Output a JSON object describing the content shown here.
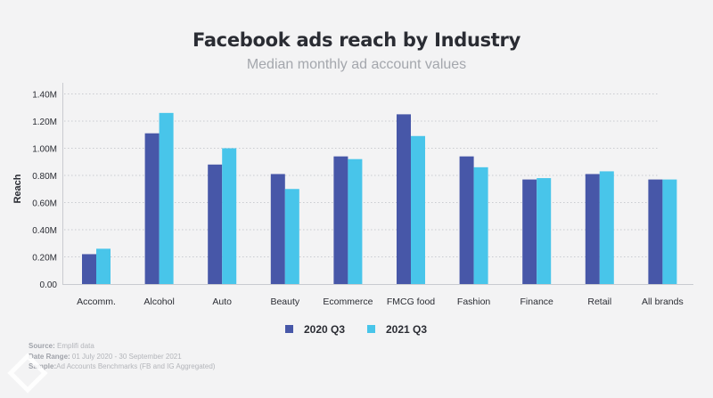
{
  "chart_data": {
    "type": "bar",
    "title": "Facebook ads reach by Industry",
    "subtitle": "Median monthly ad account values",
    "ylabel": "Reach",
    "xlabel": "",
    "ylim": [
      0,
      1.4
    ],
    "yticks": [
      "0.00",
      "0.20M",
      "0.40M",
      "0.60M",
      "0.80M",
      "1.00M",
      "1.20M",
      "1.40M"
    ],
    "grid": true,
    "legend_position": "bottom",
    "categories": [
      "Accomm.",
      "Alcohol",
      "Auto",
      "Beauty",
      "Ecommerce",
      "FMCG food",
      "Fashion",
      "Finance",
      "Retail",
      "All brands"
    ],
    "series": [
      {
        "name": "2020 Q3",
        "color": "#4757a8",
        "values": [
          0.22,
          1.11,
          0.88,
          0.81,
          0.94,
          1.25,
          0.94,
          0.77,
          0.81,
          0.77
        ]
      },
      {
        "name": "2021 Q3",
        "color": "#48c5ea",
        "values": [
          0.26,
          1.26,
          1.0,
          0.7,
          0.92,
          1.09,
          0.86,
          0.78,
          0.83,
          0.77
        ]
      }
    ]
  },
  "footer": {
    "source_label": "Source:",
    "source": "Emplifi data",
    "date_label": "Date Range:",
    "date": "01 July 2020 - 30 September 2021",
    "sample_label": "Sample:",
    "sample": "Ad Accounts Benchmarks (FB and IG Aggregated)"
  },
  "logo": "Emplifi"
}
